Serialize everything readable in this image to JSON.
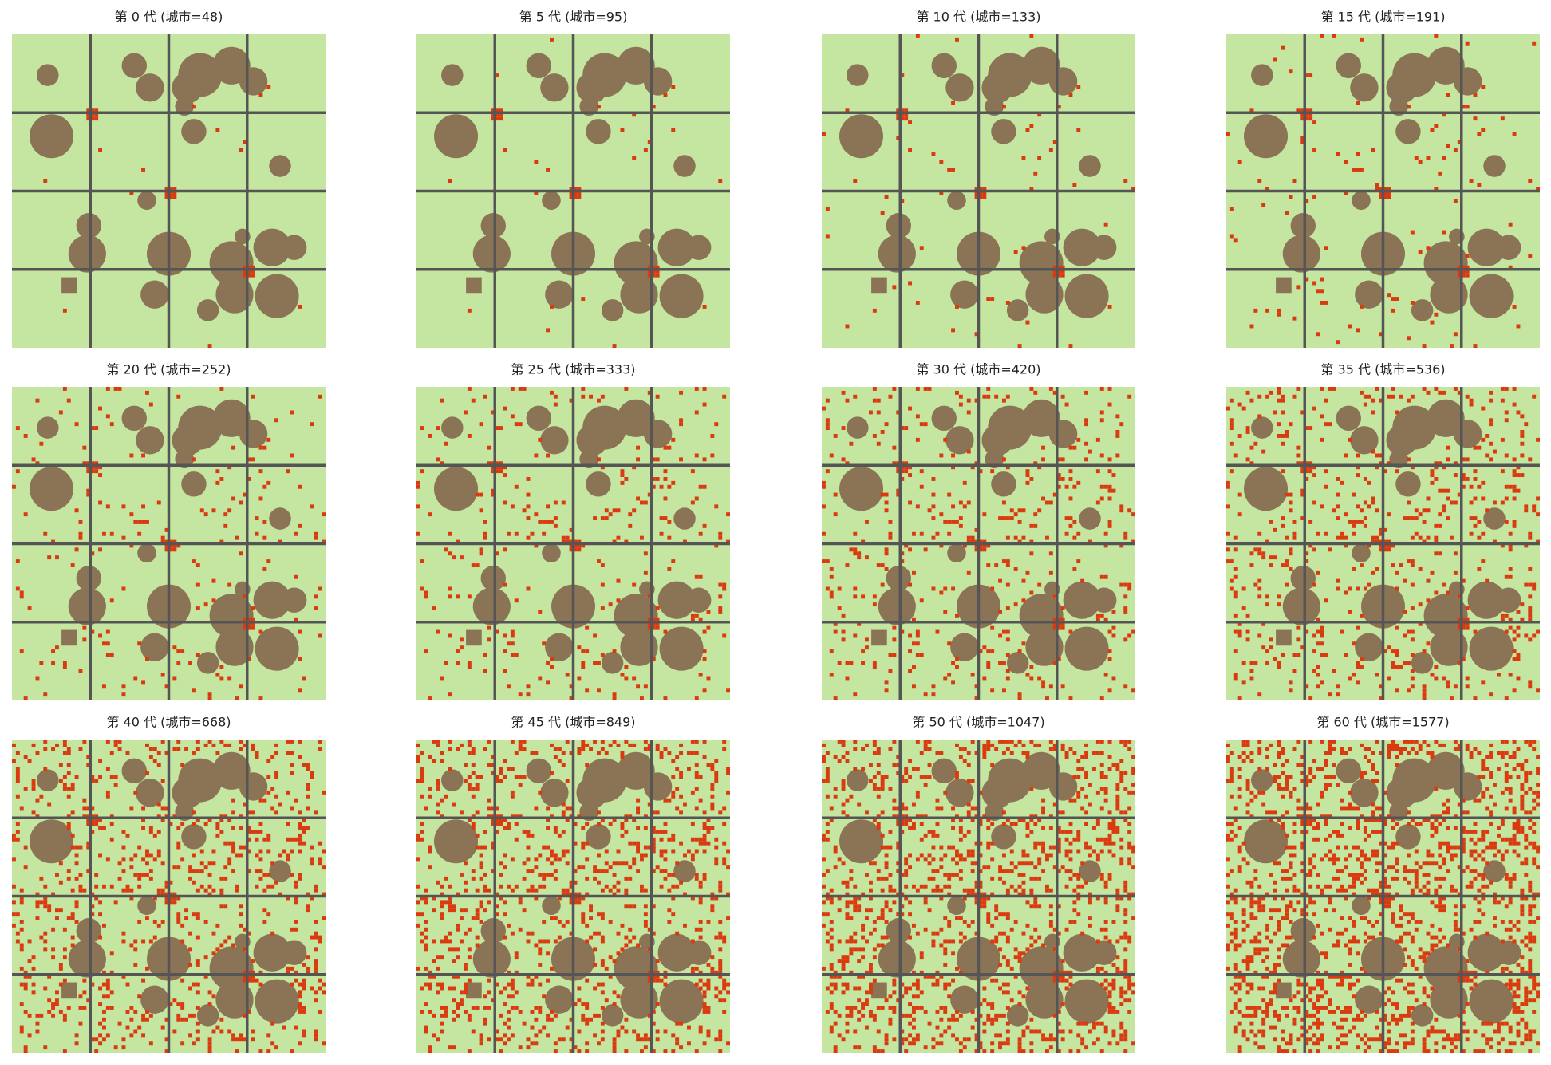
{
  "chart_data": [
    {
      "type": "map",
      "title": "第 0 代 (城市=48)"
    },
    {
      "type": "map",
      "title": "第 5 代 (城市=95)"
    },
    {
      "type": "map",
      "title": "第 10 代 (城市=133)"
    },
    {
      "type": "map",
      "title": "第 15 代 (城市=191)"
    },
    {
      "type": "map",
      "title": "第 20 代 (城市=252)"
    },
    {
      "type": "map",
      "title": "第 25 代 (城市=333)"
    },
    {
      "type": "map",
      "title": "第 30 代 (城市=420)"
    },
    {
      "type": "map",
      "title": "第 35 代 (城市=536)"
    },
    {
      "type": "map",
      "title": "第 40 代 (城市=668)"
    },
    {
      "type": "map",
      "title": "第 45 代 (城市=849)"
    },
    {
      "type": "map",
      "title": "第 50 代 (城市=1047)"
    },
    {
      "type": "map",
      "title": "第 60 代 (城市=1577)"
    }
  ]
}
